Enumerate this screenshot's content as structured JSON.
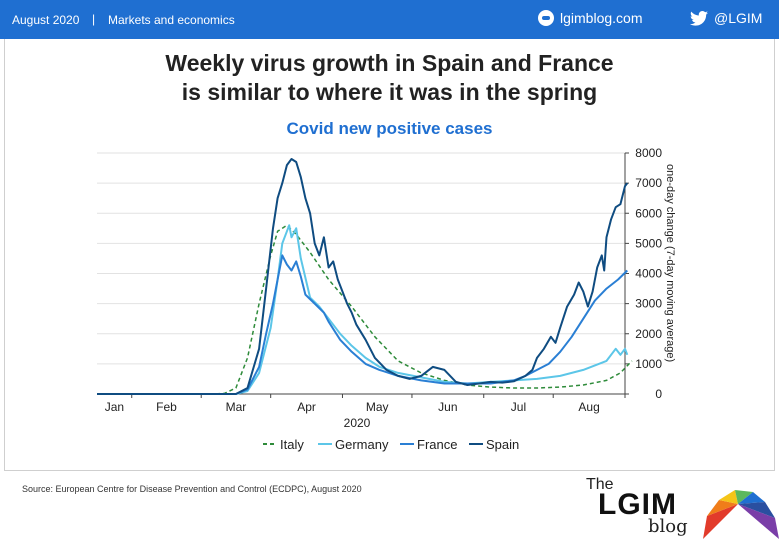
{
  "header": {
    "date": "August 2020",
    "separator": "|",
    "section": "Markets and economics",
    "blog_link": "lgimblog.com",
    "twitter": "@LGIM",
    "color": "#1f6fd1"
  },
  "title_line1": "Weekly virus growth in Spain and France",
  "title_line2": "is similar to where it was in the spring",
  "source": "Source: European Centre for Disease Prevention and Control (ECDPC), August 2020",
  "logo": {
    "the": "The",
    "name": "LGIM",
    "blog": "blog"
  },
  "chart_data": {
    "type": "line",
    "title": "Covid new positive cases",
    "ylabel": "one-day change (7-day moving average)",
    "year_label": "2020",
    "ylim": [
      0,
      8000
    ],
    "yticks": [
      0,
      1000,
      2000,
      3000,
      4000,
      5000,
      6000,
      7000,
      8000
    ],
    "xlim": [
      0,
      228
    ],
    "months": [
      {
        "label": "Jan",
        "day": 15
      },
      {
        "label": "Feb",
        "day": 45
      },
      {
        "label": "Mar",
        "day": 75
      },
      {
        "label": "Apr",
        "day": 106
      },
      {
        "label": "May",
        "day": 136
      },
      {
        "label": "Jun",
        "day": 167
      },
      {
        "label": "Jul",
        "day": 197
      },
      {
        "label": "Aug",
        "day": 228
      }
    ],
    "grid": true,
    "legend_position": "bottom",
    "series": [
      {
        "name": "Italy",
        "color": "#2e8b3a",
        "dash": true,
        "points": [
          [
            0,
            0
          ],
          [
            50,
            0
          ],
          [
            55,
            20
          ],
          [
            60,
            200
          ],
          [
            65,
            1200
          ],
          [
            70,
            3000
          ],
          [
            75,
            4600
          ],
          [
            78,
            5400
          ],
          [
            82,
            5600
          ],
          [
            86,
            5300
          ],
          [
            92,
            4700
          ],
          [
            100,
            3800
          ],
          [
            110,
            2900
          ],
          [
            120,
            1900
          ],
          [
            130,
            1100
          ],
          [
            140,
            700
          ],
          [
            150,
            450
          ],
          [
            160,
            300
          ],
          [
            170,
            230
          ],
          [
            180,
            200
          ],
          [
            190,
            200
          ],
          [
            200,
            230
          ],
          [
            210,
            300
          ],
          [
            220,
            450
          ],
          [
            226,
            700
          ],
          [
            231,
            1100
          ]
        ]
      },
      {
        "name": "Germany",
        "color": "#5cc6e8",
        "dash": false,
        "points": [
          [
            0,
            0
          ],
          [
            60,
            0
          ],
          [
            65,
            100
          ],
          [
            70,
            700
          ],
          [
            75,
            2200
          ],
          [
            78,
            3800
          ],
          [
            80,
            5000
          ],
          [
            82,
            5400
          ],
          [
            83,
            5600
          ],
          [
            84,
            5200
          ],
          [
            86,
            5500
          ],
          [
            88,
            4500
          ],
          [
            92,
            3200
          ],
          [
            96,
            2900
          ],
          [
            100,
            2500
          ],
          [
            105,
            2000
          ],
          [
            110,
            1600
          ],
          [
            116,
            1200
          ],
          [
            122,
            900
          ],
          [
            130,
            700
          ],
          [
            140,
            550
          ],
          [
            150,
            400
          ],
          [
            160,
            350
          ],
          [
            170,
            400
          ],
          [
            180,
            450
          ],
          [
            190,
            500
          ],
          [
            200,
            600
          ],
          [
            210,
            800
          ],
          [
            220,
            1100
          ],
          [
            224,
            1500
          ],
          [
            226,
            1300
          ],
          [
            228,
            1500
          ],
          [
            229,
            1300
          ]
        ]
      },
      {
        "name": "France",
        "color": "#2a7fd4",
        "dash": false,
        "points": [
          [
            0,
            0
          ],
          [
            60,
            0
          ],
          [
            65,
            150
          ],
          [
            70,
            900
          ],
          [
            73,
            2000
          ],
          [
            76,
            3000
          ],
          [
            78,
            3800
          ],
          [
            80,
            4600
          ],
          [
            82,
            4300
          ],
          [
            84,
            4100
          ],
          [
            86,
            4400
          ],
          [
            88,
            3900
          ],
          [
            90,
            3300
          ],
          [
            94,
            3000
          ],
          [
            98,
            2700
          ],
          [
            100,
            2400
          ],
          [
            105,
            1800
          ],
          [
            110,
            1400
          ],
          [
            116,
            1000
          ],
          [
            122,
            800
          ],
          [
            130,
            600
          ],
          [
            140,
            450
          ],
          [
            150,
            350
          ],
          [
            160,
            350
          ],
          [
            170,
            350
          ],
          [
            180,
            450
          ],
          [
            185,
            600
          ],
          [
            190,
            800
          ],
          [
            195,
            1000
          ],
          [
            200,
            1400
          ],
          [
            205,
            1900
          ],
          [
            210,
            2500
          ],
          [
            215,
            3100
          ],
          [
            220,
            3500
          ],
          [
            225,
            3800
          ],
          [
            229,
            4100
          ]
        ]
      },
      {
        "name": "Spain",
        "color": "#0f4c81",
        "dash": false,
        "points": [
          [
            0,
            0
          ],
          [
            60,
            0
          ],
          [
            65,
            200
          ],
          [
            70,
            1500
          ],
          [
            73,
            3500
          ],
          [
            76,
            5500
          ],
          [
            78,
            6500
          ],
          [
            80,
            7000
          ],
          [
            82,
            7600
          ],
          [
            84,
            7800
          ],
          [
            86,
            7700
          ],
          [
            88,
            7200
          ],
          [
            90,
            6500
          ],
          [
            92,
            6000
          ],
          [
            94,
            5000
          ],
          [
            96,
            4600
          ],
          [
            98,
            5200
          ],
          [
            100,
            4200
          ],
          [
            102,
            4400
          ],
          [
            104,
            3800
          ],
          [
            106,
            3400
          ],
          [
            108,
            3000
          ],
          [
            110,
            2700
          ],
          [
            112,
            2300
          ],
          [
            116,
            1800
          ],
          [
            120,
            1200
          ],
          [
            125,
            800
          ],
          [
            130,
            600
          ],
          [
            135,
            500
          ],
          [
            140,
            600
          ],
          [
            145,
            900
          ],
          [
            150,
            800
          ],
          [
            155,
            400
          ],
          [
            160,
            300
          ],
          [
            165,
            350
          ],
          [
            170,
            400
          ],
          [
            175,
            380
          ],
          [
            180,
            420
          ],
          [
            185,
            600
          ],
          [
            188,
            800
          ],
          [
            190,
            1200
          ],
          [
            193,
            1500
          ],
          [
            196,
            1900
          ],
          [
            198,
            1700
          ],
          [
            200,
            2200
          ],
          [
            203,
            2900
          ],
          [
            206,
            3300
          ],
          [
            208,
            3700
          ],
          [
            210,
            3400
          ],
          [
            212,
            2900
          ],
          [
            214,
            3400
          ],
          [
            216,
            4200
          ],
          [
            218,
            4600
          ],
          [
            219,
            4100
          ],
          [
            220,
            5200
          ],
          [
            222,
            5800
          ],
          [
            224,
            6200
          ],
          [
            226,
            6300
          ],
          [
            228,
            6900
          ],
          [
            229,
            7000
          ]
        ]
      }
    ]
  }
}
